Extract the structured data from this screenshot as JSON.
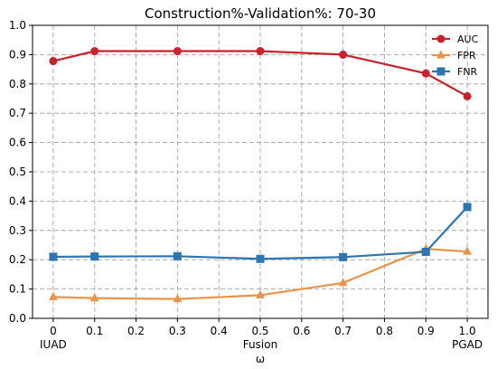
{
  "chart_data": {
    "type": "line",
    "title": "Construction%-Validation%: 70-30",
    "xlabel": "ω",
    "ylabel": "",
    "x": [
      0,
      0.1,
      0.3,
      0.5,
      0.7,
      0.9,
      1.0
    ],
    "xlim": [
      -0.05,
      1.05
    ],
    "ylim": [
      0.0,
      1.0
    ],
    "xticks": [
      0,
      0.1,
      0.2,
      0.3,
      0.4,
      0.5,
      0.6,
      0.7,
      0.8,
      0.9,
      1.0
    ],
    "xtick_labels": [
      "0",
      "0.1",
      "0.2",
      "0.3",
      "0.4",
      "0.5",
      "0.6",
      "0.7",
      "0.8",
      "0.9",
      "1.0"
    ],
    "yticks": [
      0.0,
      0.1,
      0.2,
      0.3,
      0.4,
      0.5,
      0.6,
      0.7,
      0.8,
      0.9,
      1.0
    ],
    "ytick_labels": [
      "0.0",
      "0.1",
      "0.2",
      "0.3",
      "0.4",
      "0.5",
      "0.6",
      "0.7",
      "0.8",
      "0.9",
      "1.0"
    ],
    "annotations": [
      {
        "x": 0,
        "text": "IUAD"
      },
      {
        "x": 0.5,
        "text": "Fusion"
      },
      {
        "x": 1.0,
        "text": "PGAD"
      }
    ],
    "grid": true,
    "legend_position": "top-right",
    "series": [
      {
        "name": "AUC",
        "color": "#c8232c",
        "marker": "circle",
        "values": [
          0.878,
          0.912,
          0.912,
          0.912,
          0.9,
          0.836,
          0.758
        ]
      },
      {
        "name": "FPR",
        "color": "#e8954a",
        "marker": "triangle",
        "values": [
          0.073,
          0.069,
          0.066,
          0.079,
          0.121,
          0.237,
          0.228
        ]
      },
      {
        "name": "FNR",
        "color": "#2d74b0",
        "marker": "square",
        "values": [
          0.21,
          0.211,
          0.212,
          0.203,
          0.209,
          0.227,
          0.38
        ]
      }
    ]
  }
}
